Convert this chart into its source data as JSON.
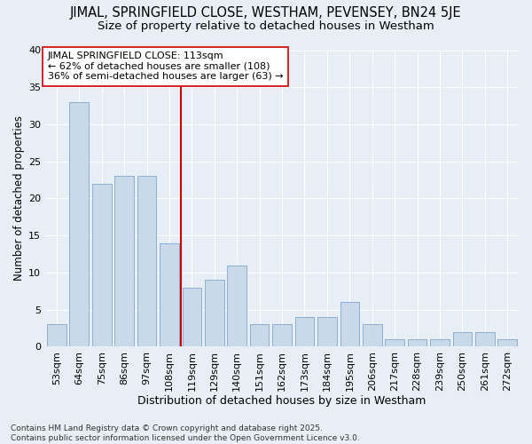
{
  "title1": "JIMAL, SPRINGFIELD CLOSE, WESTHAM, PEVENSEY, BN24 5JE",
  "title2": "Size of property relative to detached houses in Westham",
  "xlabel": "Distribution of detached houses by size in Westham",
  "ylabel": "Number of detached properties",
  "categories": [
    "53sqm",
    "64sqm",
    "75sqm",
    "86sqm",
    "97sqm",
    "108sqm",
    "119sqm",
    "129sqm",
    "140sqm",
    "151sqm",
    "162sqm",
    "173sqm",
    "184sqm",
    "195sqm",
    "206sqm",
    "217sqm",
    "228sqm",
    "239sqm",
    "250sqm",
    "261sqm",
    "272sqm"
  ],
  "values": [
    3,
    33,
    22,
    23,
    23,
    14,
    8,
    9,
    11,
    3,
    3,
    4,
    4,
    6,
    3,
    1,
    1,
    1,
    2,
    2,
    1
  ],
  "bar_color": "#c9d9ea",
  "bar_edge_color": "#8bafd4",
  "background_color": "#e8eef5",
  "grid_color": "#ffffff",
  "vline_x": 5.5,
  "vline_color": "#cc0000",
  "annotation_text": "JIMAL SPRINGFIELD CLOSE: 113sqm\n← 62% of detached houses are smaller (108)\n36% of semi-detached houses are larger (63) →",
  "annotation_box_color": "#ffffff",
  "annotation_box_edge": "#cc0000",
  "ylim": [
    0,
    40
  ],
  "yticks": [
    0,
    5,
    10,
    15,
    20,
    25,
    30,
    35,
    40
  ],
  "footnote": "Contains HM Land Registry data © Crown copyright and database right 2025.\nContains public sector information licensed under the Open Government Licence v3.0.",
  "title1_fontsize": 10.5,
  "title2_fontsize": 9.5,
  "xlabel_fontsize": 9,
  "ylabel_fontsize": 8.5,
  "tick_fontsize": 8,
  "annot_fontsize": 8,
  "footnote_fontsize": 6.5
}
